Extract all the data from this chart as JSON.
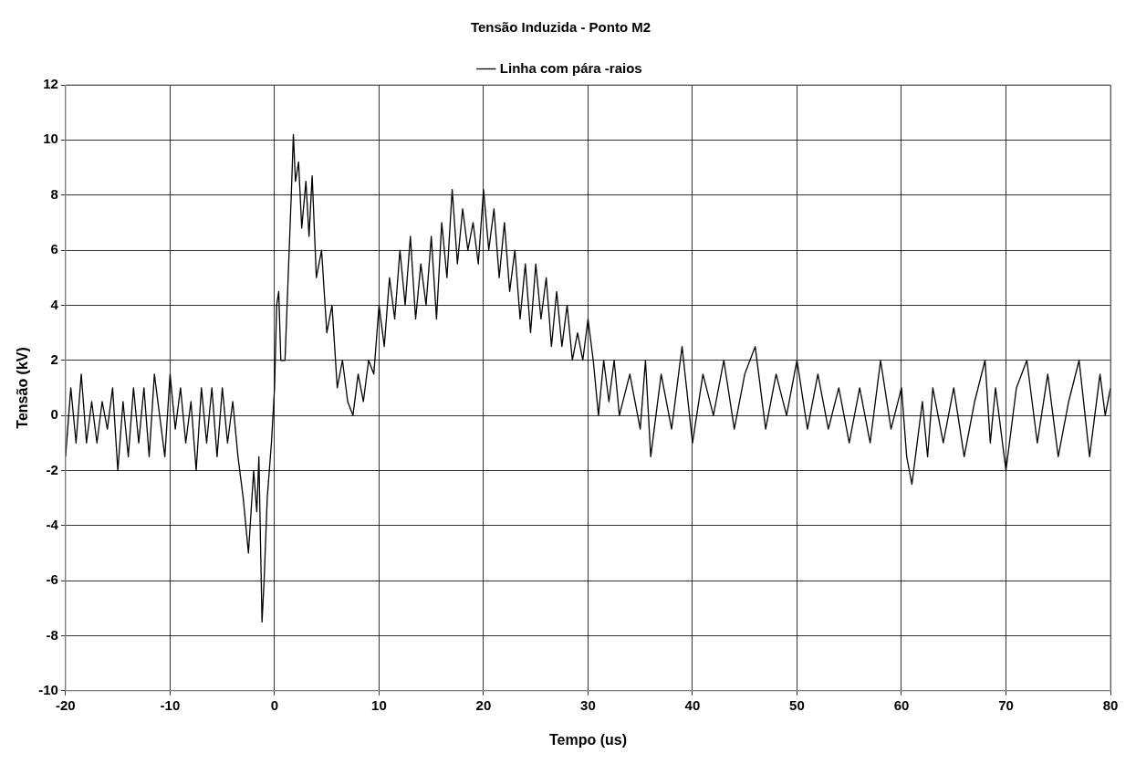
{
  "chart_data": {
    "type": "line",
    "title": "Tensão Induzida - Ponto M2",
    "xlabel": "Tempo (us)",
    "ylabel": "Tensão (kV)",
    "xlim": [
      -20,
      80
    ],
    "xticks": [
      -20,
      -10,
      0,
      10,
      20,
      30,
      40,
      50,
      60,
      70,
      80
    ],
    "ylim": [
      -10,
      12
    ],
    "yticks": [
      -10,
      -8,
      -6,
      -4,
      -2,
      0,
      2,
      4,
      6,
      8,
      10,
      12
    ],
    "grid": true,
    "legend": "top",
    "marker": "none",
    "line_style": "solid",
    "series": [
      {
        "name": "Linha com pára -raios",
        "color": "#000000",
        "x": [
          -20,
          -19.5,
          -19,
          -18.5,
          -18,
          -17.5,
          -17,
          -16.5,
          -16,
          -15.5,
          -15,
          -14.5,
          -14,
          -13.5,
          -13,
          -12.5,
          -12,
          -11.5,
          -11,
          -10.5,
          -10,
          -9.5,
          -9,
          -8.5,
          -8,
          -7.5,
          -7,
          -6.5,
          -6,
          -5.5,
          -5,
          -4.5,
          -4,
          -3.5,
          -3,
          -2.5,
          -2,
          -1.7,
          -1.5,
          -1.2,
          -1,
          -0.7,
          -0.3,
          0,
          0.2,
          0.4,
          0.6,
          1,
          1.3,
          1.6,
          1.8,
          2,
          2.3,
          2.6,
          3,
          3.3,
          3.6,
          4,
          4.5,
          5,
          5.5,
          6,
          6.5,
          7,
          7.5,
          8,
          8.5,
          9,
          9.5,
          10,
          10.5,
          11,
          11.5,
          12,
          12.5,
          13,
          13.5,
          14,
          14.5,
          15,
          15.5,
          16,
          16.5,
          17,
          17.5,
          18,
          18.5,
          19,
          19.5,
          20,
          20.5,
          21,
          21.5,
          22,
          22.5,
          23,
          23.5,
          24,
          24.5,
          25,
          25.5,
          26,
          26.5,
          27,
          27.5,
          28,
          28.5,
          29,
          29.5,
          30,
          30.5,
          31,
          31.5,
          32,
          32.5,
          33,
          34,
          35,
          35.5,
          36,
          37,
          38,
          39,
          40,
          41,
          42,
          43,
          44,
          45,
          46,
          47,
          48,
          49,
          50,
          51,
          52,
          53,
          54,
          55,
          56,
          57,
          58,
          59,
          60,
          60.5,
          61,
          62,
          62.5,
          63,
          64,
          65,
          66,
          67,
          68,
          68.5,
          69,
          70,
          71,
          72,
          73,
          74,
          75,
          76,
          77,
          78,
          79,
          79.5,
          80
        ],
        "values": [
          -1.5,
          1,
          -1,
          1.5,
          -1,
          0.5,
          -1,
          0.5,
          -0.5,
          1,
          -2,
          0.5,
          -1.5,
          1,
          -1,
          1,
          -1.5,
          1.5,
          0,
          -1.5,
          1.5,
          -0.5,
          1,
          -1,
          0.5,
          -2,
          1,
          -1,
          1,
          -1.5,
          1,
          -1,
          0.5,
          -1.5,
          -3,
          -5,
          -2,
          -3.5,
          -1.5,
          -7.5,
          -6,
          -3,
          -1,
          1,
          4,
          4.5,
          2,
          2,
          5,
          8,
          10.2,
          8.5,
          9.2,
          6.8,
          8.5,
          6.5,
          8.7,
          5,
          6,
          3,
          4,
          1,
          2,
          0.5,
          0,
          1.5,
          0.5,
          2,
          1.5,
          4,
          2.5,
          5,
          3.5,
          6,
          4,
          6.5,
          3.5,
          5.5,
          4,
          6.5,
          3.5,
          7,
          5,
          8.2,
          5.5,
          7.5,
          6,
          7,
          5.5,
          8.2,
          6,
          7.5,
          5,
          7,
          4.5,
          6,
          3.5,
          5.5,
          3,
          5.5,
          3.5,
          5,
          2.5,
          4.5,
          2.5,
          4,
          2,
          3,
          2,
          3.5,
          2,
          0,
          2,
          0.5,
          2,
          0,
          1.5,
          -0.5,
          2,
          -1.5,
          1.5,
          -0.5,
          2.5,
          -1,
          1.5,
          0,
          2,
          -0.5,
          1.5,
          2.5,
          -0.5,
          1.5,
          0,
          2,
          -0.5,
          1.5,
          -0.5,
          1,
          -1,
          1,
          -1,
          2,
          -0.5,
          1,
          -1.5,
          -2.5,
          0.5,
          -1.5,
          1,
          -1,
          1,
          -1.5,
          0.5,
          2,
          -1,
          1,
          -2,
          1,
          2,
          -1,
          1.5,
          -1.5,
          0.5,
          2,
          -1.5,
          1.5,
          0,
          1
        ]
      }
    ]
  }
}
